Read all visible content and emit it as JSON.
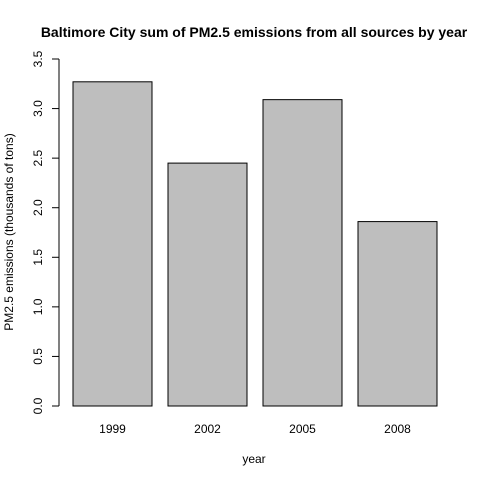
{
  "chart_data": {
    "type": "bar",
    "title": "Baltimore City sum of PM2.5 emissions from all sources by year",
    "xlabel": "year",
    "ylabel": "PM2.5 emissions (thousands of tons)",
    "categories": [
      "1999",
      "2002",
      "2005",
      "2008"
    ],
    "values": [
      3.27,
      2.45,
      3.09,
      1.86
    ],
    "ylim": [
      0,
      3.5
    ],
    "yticks": [
      "0.0",
      "0.5",
      "1.0",
      "1.5",
      "2.0",
      "2.5",
      "3.0",
      "3.5"
    ],
    "grid": false,
    "bar_color": "#bebebe"
  }
}
